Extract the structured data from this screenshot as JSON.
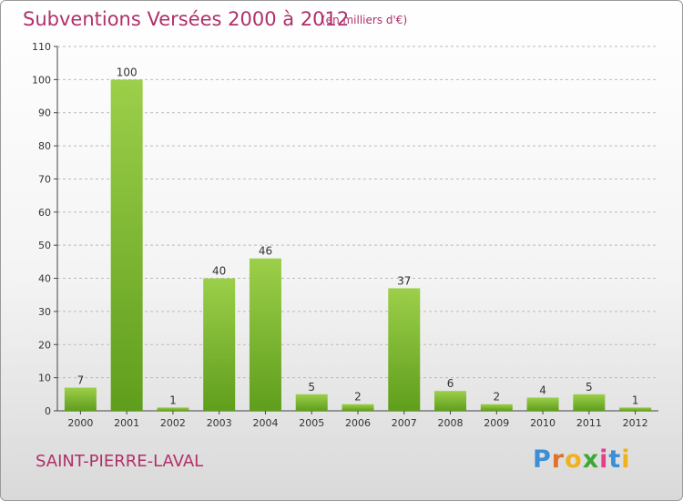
{
  "header": {
    "title": "Subventions Versées 2000 à 2012",
    "subtitle": "(en milliers d'€)"
  },
  "footer": {
    "commune": "SAINT-PIERRE-LAVAL",
    "logo_letters": [
      "P",
      "r",
      "o",
      "x",
      "i",
      "t",
      "i"
    ],
    "logo_colors": [
      "#3b8fd6",
      "#e0712b",
      "#f0b21c",
      "#3aaa35",
      "#e0418a",
      "#3b8fd6",
      "#f0b21c"
    ]
  },
  "colors": {
    "bar_light": "#9ccf4a",
    "bar_dark": "#5f9e1c",
    "axis": "#444444",
    "grid": "#bbbbbb",
    "title": "#b0306a"
  },
  "chart_data": {
    "type": "bar",
    "title": "Subventions Versées 2000 à 2012",
    "subtitle": "(en milliers d'€)",
    "categories": [
      "2000",
      "2001",
      "2002",
      "2003",
      "2004",
      "2005",
      "2006",
      "2007",
      "2008",
      "2009",
      "2010",
      "2011",
      "2012"
    ],
    "values": [
      7,
      100,
      1,
      40,
      46,
      5,
      2,
      37,
      6,
      2,
      4,
      5,
      1
    ],
    "ylim": [
      0,
      110
    ],
    "yticks": [
      0,
      10,
      20,
      30,
      40,
      50,
      60,
      70,
      80,
      90,
      100,
      110
    ],
    "grid": true,
    "grid_style": "dashed horizontal",
    "data_labels": true
  }
}
